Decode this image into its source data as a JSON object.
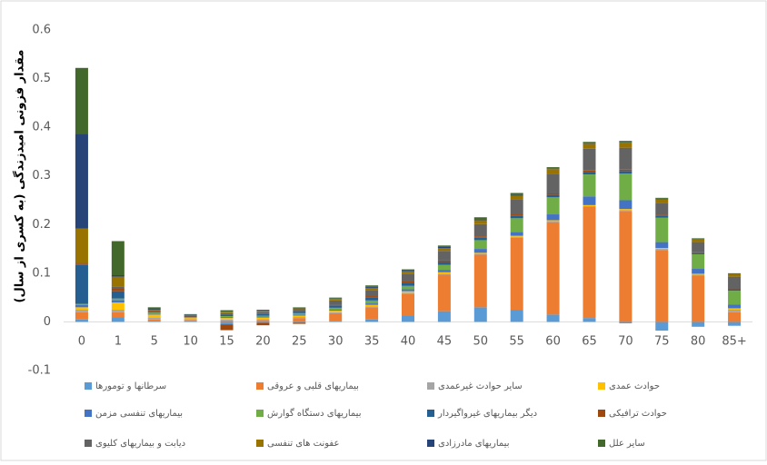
{
  "chart_data": {
    "type": "stacked_bar",
    "y_label": "مقدار فزونی امیدزندگی (به کسری از سال)",
    "categories": [
      "0",
      "1",
      "5",
      "10",
      "15",
      "20",
      "25",
      "30",
      "35",
      "40",
      "45",
      "50",
      "55",
      "60",
      "65",
      "70",
      "75",
      "80",
      "85+"
    ],
    "ylim": [
      -0.1,
      0.6
    ],
    "yticks": [
      -0.1,
      0,
      0.1,
      0.2,
      0.3,
      0.4,
      0.5,
      0.6
    ],
    "grid": false,
    "legend": "bottom",
    "series": [
      {
        "name": "سرطانها و تومورها",
        "color": "#5b9bd5",
        "values": [
          0.005,
          0.01,
          0.002,
          0.002,
          -0.005,
          -0.002,
          -0.002,
          0.002,
          0.005,
          0.013,
          0.022,
          0.03,
          0.025,
          0.015,
          0.008,
          -0.003,
          -0.018,
          -0.01,
          -0.008
        ]
      },
      {
        "name": "بیماریهای قلبی و عروقی",
        "color": "#ed7d31",
        "values": [
          0.015,
          0.01,
          0.003,
          0.002,
          0.003,
          0.004,
          0.008,
          0.016,
          0.025,
          0.045,
          0.075,
          0.108,
          0.148,
          0.19,
          0.228,
          0.228,
          0.148,
          0.095,
          0.02
        ]
      },
      {
        "name": "سایر حوادث غیرعمدی",
        "color": "#a5a5a5",
        "values": [
          0.005,
          0.005,
          0.004,
          0.002,
          0.002,
          0.002,
          0.002,
          0.002,
          0.002,
          0.002,
          0.002,
          0.002,
          0.002,
          0.002,
          0.002,
          0.002,
          0.002,
          0.002,
          0.005
        ]
      },
      {
        "name": "حوادث عمدی",
        "color": "#ffc000",
        "values": [
          0.005,
          0.015,
          0.006,
          0.002,
          0.003,
          0.003,
          0.003,
          0.003,
          0.003,
          0.003,
          0.003,
          0.002,
          0.002,
          0.002,
          0.002,
          0.002,
          0.002,
          0.002,
          0.003
        ]
      },
      {
        "name": "بیماریهای تنفسی مزمن",
        "color": "#4472c4",
        "values": [
          0.005,
          0.005,
          0.002,
          0.001,
          0.002,
          0.002,
          0.002,
          0.002,
          0.003,
          0.004,
          0.005,
          0.008,
          0.008,
          0.012,
          0.018,
          0.018,
          0.012,
          0.01,
          0.008
        ]
      },
      {
        "name": "بیماریهای دستگاه گوارش",
        "color": "#70ad47",
        "values": [
          0.002,
          0.003,
          0.002,
          0.001,
          0.002,
          0.002,
          0.003,
          0.004,
          0.006,
          0.007,
          0.01,
          0.018,
          0.028,
          0.035,
          0.045,
          0.055,
          0.05,
          0.03,
          0.028
        ]
      },
      {
        "name": "دیگر بیماریهای غیرواگیردار",
        "color": "#255e91",
        "values": [
          0.08,
          0.015,
          0.002,
          0.001,
          0.003,
          0.003,
          0.004,
          0.005,
          0.006,
          0.006,
          0.006,
          0.005,
          0.005,
          0.005,
          0.005,
          0.005,
          0.004,
          0.003,
          0.003
        ]
      },
      {
        "name": "حوادث ترافیکی",
        "color": "#9e480e",
        "values": [
          0.003,
          0.005,
          0.002,
          0.001,
          -0.012,
          -0.005,
          -0.002,
          0.002,
          0.003,
          0.003,
          0.003,
          0.003,
          0.003,
          0.003,
          0.003,
          0.003,
          0.002,
          0.002,
          0.001
        ]
      },
      {
        "name": "دیابت و بیماریهای کلیوی",
        "color": "#636363",
        "values": [
          0.002,
          0.005,
          0.001,
          0.001,
          0.003,
          0.004,
          0.004,
          0.008,
          0.012,
          0.015,
          0.02,
          0.025,
          0.03,
          0.04,
          0.045,
          0.045,
          0.025,
          0.02,
          0.025
        ]
      },
      {
        "name": "عفونت های تنفسی",
        "color": "#997300",
        "values": [
          0.07,
          0.02,
          0.001,
          0.001,
          0.002,
          0.002,
          0.002,
          0.003,
          0.005,
          0.005,
          0.006,
          0.008,
          0.008,
          0.01,
          0.01,
          0.01,
          0.007,
          0.006,
          0.005
        ]
      },
      {
        "name": "بیماریهای مادرزادی",
        "color": "#264478",
        "values": [
          0.195,
          0.003,
          0.001,
          0.001,
          0.001,
          0.001,
          0.001,
          0.001,
          0.002,
          0.002,
          0.002,
          0.002,
          0.002,
          0.001,
          0.001,
          0.001,
          0.001,
          0.001,
          0.001
        ]
      },
      {
        "name": "سایر علل",
        "color": "#43682b",
        "values": [
          0.135,
          0.07,
          0.004,
          0.001,
          0.003,
          0.002,
          0.001,
          0.002,
          0.003,
          0.003,
          0.003,
          0.004,
          0.004,
          0.003,
          0.003,
          0.003,
          0.002,
          0.001,
          0.001
        ]
      }
    ]
  }
}
